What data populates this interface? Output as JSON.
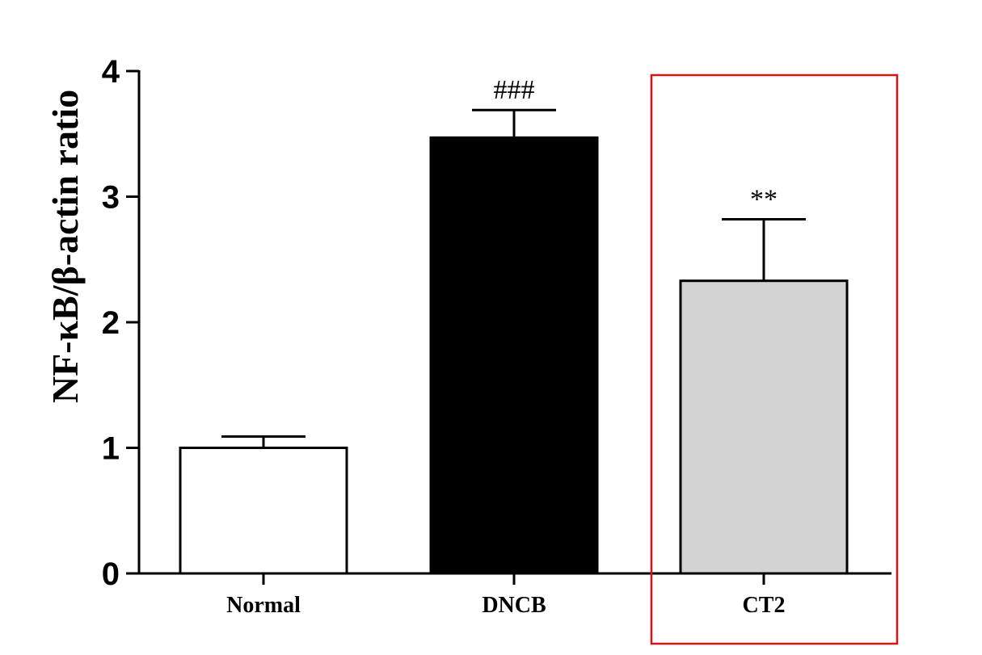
{
  "chart_data": {
    "type": "bar",
    "ylabel": "NF-κB/β-actin ratio",
    "xlabel": "",
    "ylim": [
      0,
      4
    ],
    "yticks": [
      0,
      1,
      2,
      3,
      4
    ],
    "categories": [
      "Normal",
      "DNCB",
      "CT2"
    ],
    "values": [
      1.0,
      3.47,
      2.33
    ],
    "errors": [
      0.09,
      0.22,
      0.49
    ],
    "annotations": [
      "",
      "###",
      "**"
    ],
    "bar_colors": [
      "#ffffff",
      "#000000",
      "#d3d3d3"
    ],
    "highlight": {
      "category": "CT2",
      "color": "#dd1111"
    },
    "grid": false,
    "legend": "none"
  }
}
